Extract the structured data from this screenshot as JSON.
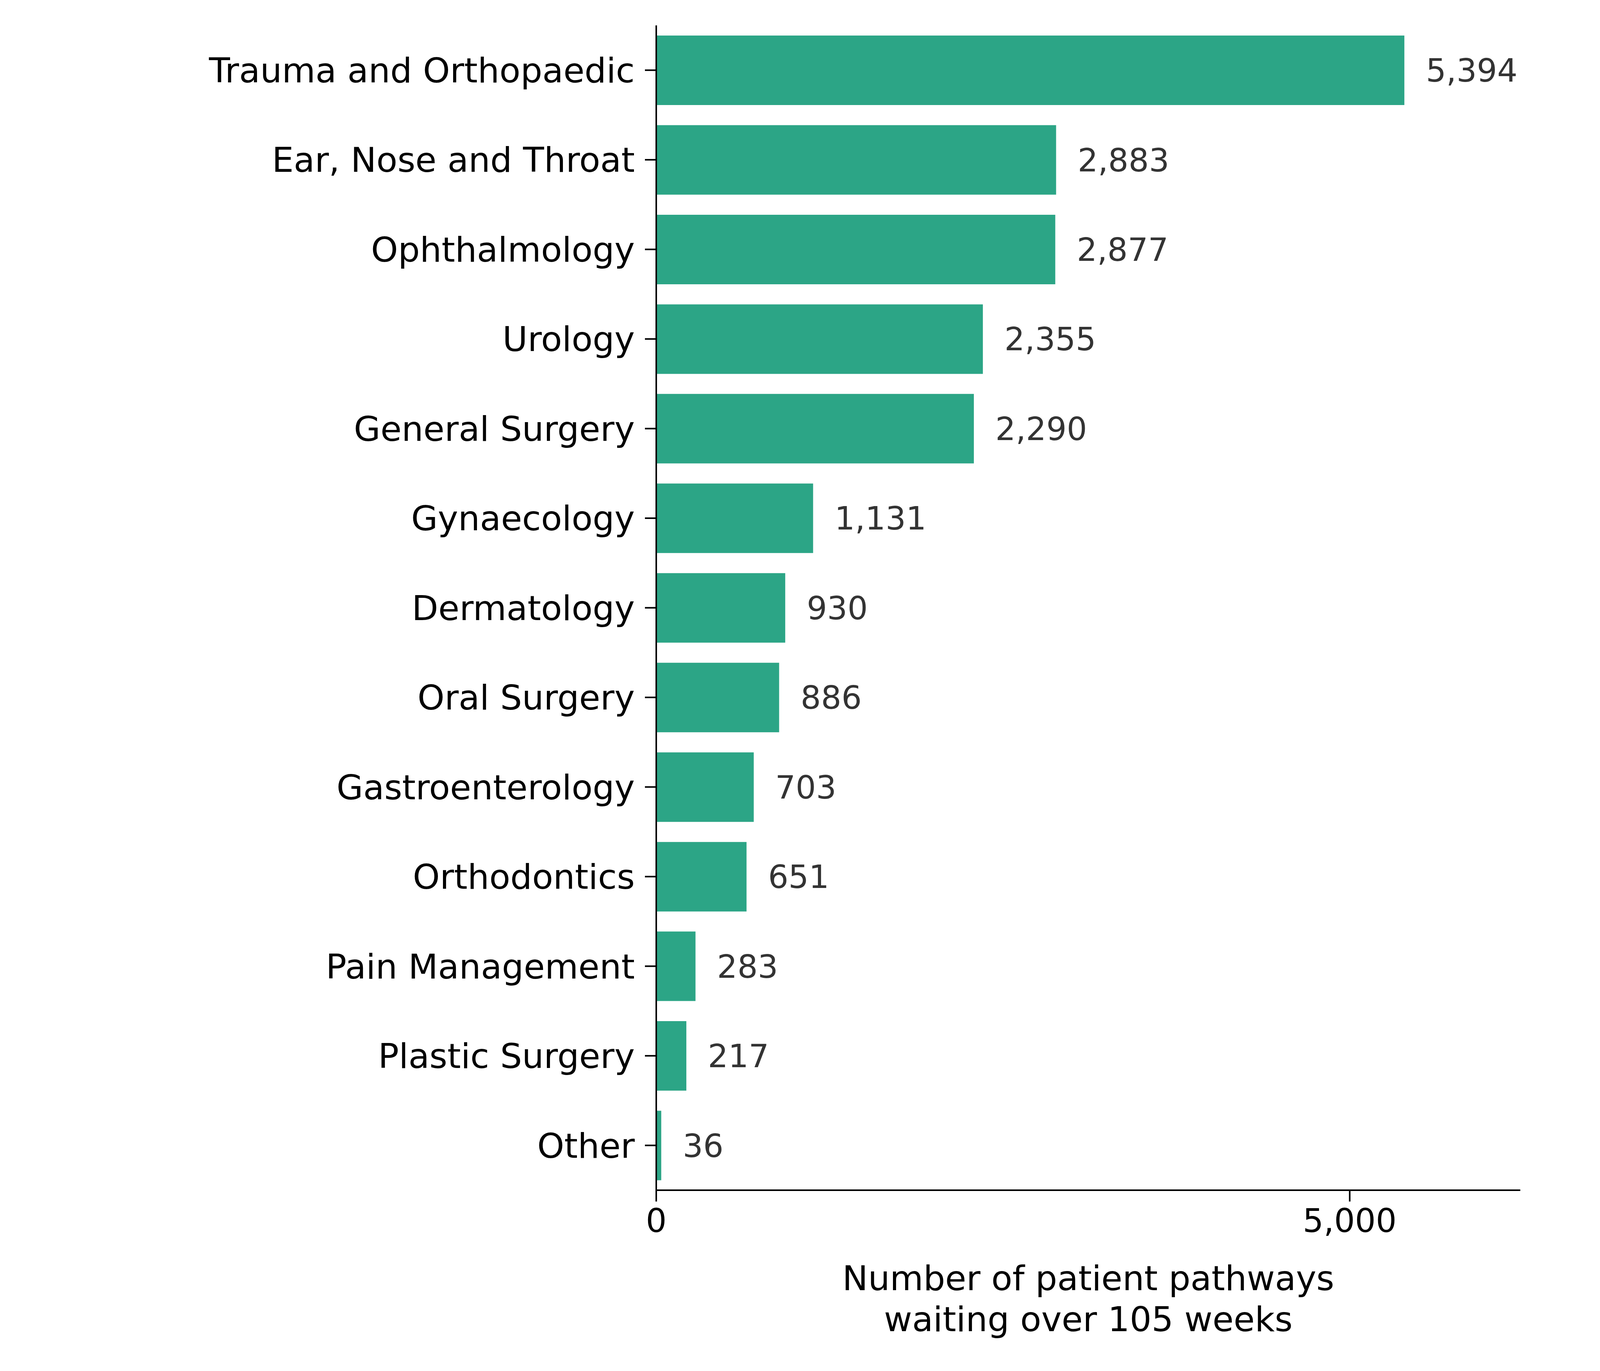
{
  "chart_data": {
    "type": "bar",
    "orientation": "horizontal",
    "categories": [
      "Trauma and Orthopaedic",
      "Ear, Nose and Throat",
      "Ophthalmology",
      "Urology",
      "General Surgery",
      "Gynaecology",
      "Dermatology",
      "Oral Surgery",
      "Gastroenterology",
      "Orthodontics",
      "Pain Management",
      "Plastic Surgery",
      "Other"
    ],
    "values": [
      5394,
      2883,
      2877,
      2355,
      2290,
      1131,
      930,
      886,
      703,
      651,
      283,
      217,
      36
    ],
    "value_labels": [
      "5,394",
      "2,883",
      "2,877",
      "2,355",
      "2,290",
      "1,131",
      "930",
      "886",
      "703",
      "651",
      "283",
      "217",
      "36"
    ],
    "color": "#2ca586",
    "x_label": "Number of patient pathways\nwaiting over 105 weeks",
    "xlim": [
      0,
      6230
    ],
    "xticks": [
      0,
      {
        "value": 5000,
        "label": "5,000"
      }
    ],
    "grid": false,
    "data_labels": true
  }
}
